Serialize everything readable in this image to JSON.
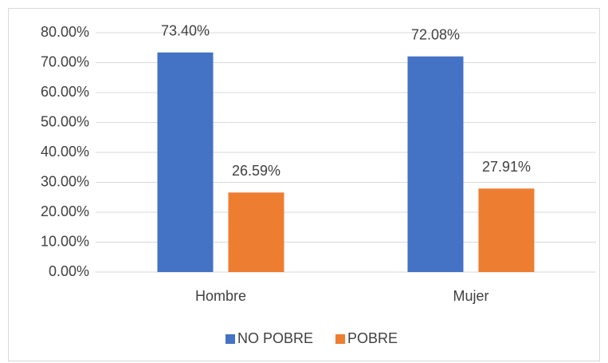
{
  "chart_data": {
    "type": "bar",
    "categories": [
      "Hombre",
      "Mujer"
    ],
    "series": [
      {
        "name": "NO POBRE",
        "color": "#4472c4",
        "values": [
          73.4,
          72.08
        ],
        "value_labels": [
          "73.40%",
          "72.08%"
        ]
      },
      {
        "name": "POBRE",
        "color": "#ed7d31",
        "values": [
          26.59,
          27.91
        ],
        "value_labels": [
          "26.59%",
          "27.91%"
        ]
      }
    ],
    "ylim": [
      0,
      80
    ],
    "yticks": [
      {
        "value": 0,
        "label": "0.00%"
      },
      {
        "value": 10,
        "label": "10.00%"
      },
      {
        "value": 20,
        "label": "20.00%"
      },
      {
        "value": 30,
        "label": "30.00%"
      },
      {
        "value": 40,
        "label": "40.00%"
      },
      {
        "value": 50,
        "label": "50.00%"
      },
      {
        "value": 60,
        "label": "60.00%"
      },
      {
        "value": 70,
        "label": "70.00%"
      },
      {
        "value": 80,
        "label": "80.00%"
      }
    ],
    "grid": true,
    "legend": "bottom"
  }
}
